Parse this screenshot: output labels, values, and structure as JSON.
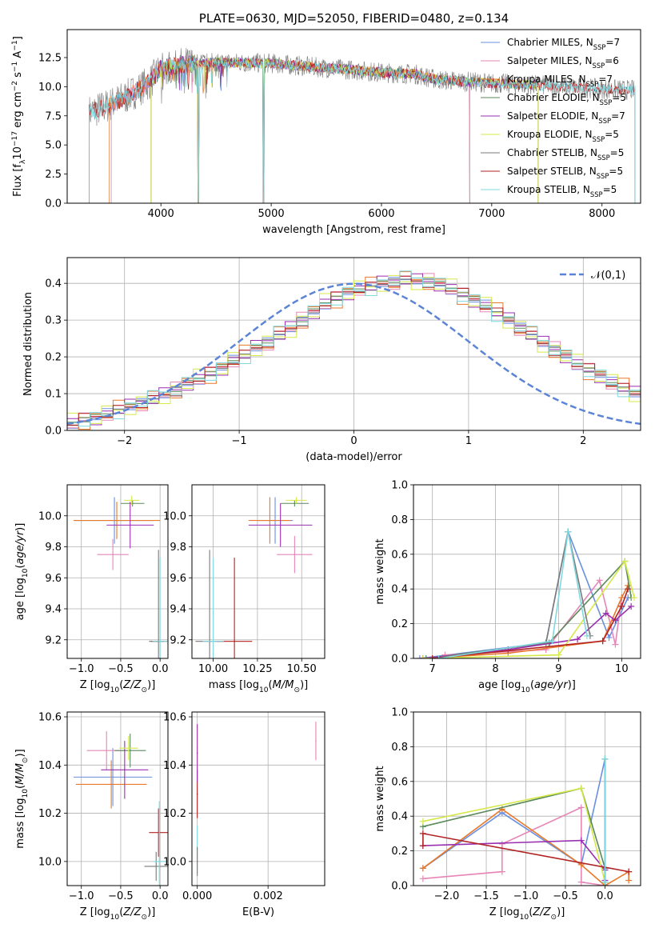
{
  "colors": {
    "chabrier_miles": "#6a8fe0",
    "salpeter_miles": "#e685b6",
    "kroupa_miles": "#e8782a",
    "chabrier_elodie": "#5a8a5a",
    "salpeter_elodie": "#9a2fb0",
    "kroupa_elodie": "#d6e84a",
    "chabrier_stelib": "#7a7a7a",
    "salpeter_stelib": "#b22222",
    "kroupa_stelib": "#7fd8e0",
    "normal_curve": "#5b84d6",
    "grid": "#b0b0b0"
  },
  "chart_data": [
    {
      "id": "spectrum",
      "type": "line",
      "title": "PLATE=0630, MJD=52050, FIBERID=0480, z=0.134",
      "xlabel": "wavelength [Angstrom, rest frame]",
      "ylabel": "Flux [f$_\\lambda$10$^{-17}$ erg cm$^{-2}$ s$^{-1}$ A$^{-1}$]",
      "xlim": [
        3150,
        8350
      ],
      "ylim": [
        0,
        14.9
      ],
      "xticks": [
        "4000",
        "5000",
        "6000",
        "7000",
        "8000"
      ],
      "yticks": [
        "0.0",
        "2.5",
        "5.0",
        "7.5",
        "10.0",
        "12.5"
      ],
      "grid": false,
      "legend_position": "top-right",
      "series": [
        {
          "name": "Chabrier MILES, N$_{SSP}$=7"
        },
        {
          "name": "Salpeter MILES, N$_{SSP}$=6"
        },
        {
          "name": "Kroupa MILES, N$_{SSP}$=7"
        },
        {
          "name": "Chabrier ELODIE, N$_{SSP}$=5"
        },
        {
          "name": "Salpeter ELODIE, N$_{SSP}$=7"
        },
        {
          "name": "Kroupa ELODIE, N$_{SSP}$=5"
        },
        {
          "name": "Chabrier STELIB, N$_{SSP}$=5"
        },
        {
          "name": "Salpeter STELIB, N$_{SSP}$=5"
        },
        {
          "name": "Kroupa STELIB, N$_{SSP}$=5"
        }
      ],
      "continuum": {
        "x": [
          3350,
          3500,
          3700,
          3900,
          4000,
          4200,
          4500,
          5000,
          5500,
          5800,
          6000,
          6300,
          6500,
          7000,
          7500,
          8000,
          8300
        ],
        "y": [
          7.8,
          8.3,
          9.2,
          10.4,
          11.6,
          11.9,
          12.1,
          12.0,
          11.6,
          11.4,
          11.2,
          11.1,
          10.6,
          10.3,
          10.1,
          9.8,
          9.7
        ]
      },
      "model_range_starts": [
        3550,
        3550,
        3530,
        3910,
        3910,
        3910,
        3350,
        3350,
        3350
      ],
      "model_range_ends": [
        6800,
        6800,
        6800,
        7420,
        7420,
        7420,
        8300,
        8300,
        8300
      ],
      "absorption_dips_x": [
        4340,
        4930
      ]
    },
    {
      "id": "residual-histogram",
      "type": "bar",
      "xlabel": "(data-model)/error",
      "ylabel": "Normed distribution",
      "xlim": [
        -2.5,
        2.5
      ],
      "ylim": [
        0,
        0.47
      ],
      "xticks": [
        "−2",
        "−1",
        "0",
        "1",
        "2"
      ],
      "yticks": [
        "0.0",
        "0.1",
        "0.2",
        "0.3",
        "0.4"
      ],
      "grid": true,
      "legend_position": "top-right",
      "legend": "$\\mathcal{N}(0,1)$",
      "bins": {
        "start": -2.5,
        "width": 0.1
      },
      "envelope": [
        0.02,
        0.03,
        0.035,
        0.045,
        0.055,
        0.065,
        0.075,
        0.085,
        0.1,
        0.11,
        0.125,
        0.14,
        0.155,
        0.17,
        0.19,
        0.205,
        0.225,
        0.24,
        0.26,
        0.28,
        0.3,
        0.32,
        0.345,
        0.36,
        0.375,
        0.385,
        0.39,
        0.4,
        0.405,
        0.41,
        0.41,
        0.405,
        0.395,
        0.385,
        0.37,
        0.355,
        0.34,
        0.32,
        0.3,
        0.28,
        0.26,
        0.24,
        0.22,
        0.2,
        0.18,
        0.165,
        0.15,
        0.13,
        0.115,
        0.1,
        0.085
      ],
      "series_offsets": [
        0.008,
        -0.012,
        0.015,
        -0.006,
        0.011,
        -0.015,
        0.004,
        -0.009,
        0.013
      ]
    },
    {
      "id": "age-vs-z",
      "type": "scatter",
      "xlabel": "Z [log$_{10}$($Z/Z_\\odot$)]",
      "ylabel": "age  [log$_{10}$($age/yr$)]",
      "xlim": [
        -1.18,
        0.1
      ],
      "ylim": [
        9.08,
        10.2
      ],
      "xticks": [
        "−1.0",
        "−0.5",
        "0.0"
      ],
      "yticks": [
        "9.2",
        "9.4",
        "9.6",
        "9.8",
        "10.0"
      ],
      "grid": true,
      "points": [
        {
          "series": 0,
          "x": -0.58,
          "y": 9.97,
          "xerr": 0.5,
          "yerr": 0.15
        },
        {
          "series": 1,
          "x": -0.6,
          "y": 9.75,
          "xerr": 0.2,
          "yerr": 0.1
        },
        {
          "series": 2,
          "x": -0.55,
          "y": 9.97,
          "xerr": 0.55,
          "yerr": 0.12
        },
        {
          "series": 3,
          "x": -0.35,
          "y": 10.08,
          "xerr": 0.15,
          "yerr": 0.02
        },
        {
          "series": 4,
          "x": -0.38,
          "y": 9.94,
          "xerr": 0.3,
          "yerr": 0.15
        },
        {
          "series": 5,
          "x": -0.36,
          "y": 10.1,
          "xerr": 0.1,
          "yerr": 0.03
        },
        {
          "series": 6,
          "x": -0.02,
          "y": 9.19,
          "xerr": 0.12,
          "yerr": 0.59
        },
        {
          "series": 7,
          "x": -0.03,
          "y": 9.19,
          "xerr": 0.08,
          "yerr": 0.0
        },
        {
          "series": 8,
          "x": 0.0,
          "y": 9.19,
          "xerr": 0.1,
          "yerr": 0.54
        }
      ]
    },
    {
      "id": "age-vs-mass",
      "type": "scatter",
      "xlabel": "mass [log$_{10}$($M/M_\\odot$)]",
      "ylabel": "",
      "xlim": [
        9.88,
        10.63
      ],
      "ylim": [
        9.08,
        10.2
      ],
      "xticks": [
        "10.00",
        "10.25",
        "10.50"
      ],
      "yticks": [
        "9.2",
        "9.4",
        "9.6",
        "9.8",
        "10.0"
      ],
      "grid": true,
      "points": [
        {
          "series": 0,
          "x": 10.35,
          "y": 9.97,
          "xerr": 0.1,
          "yerr": 0.15
        },
        {
          "series": 1,
          "x": 10.46,
          "y": 9.75,
          "xerr": 0.1,
          "yerr": 0.12
        },
        {
          "series": 2,
          "x": 10.32,
          "y": 9.97,
          "xerr": 0.12,
          "yerr": 0.15
        },
        {
          "series": 3,
          "x": 10.46,
          "y": 10.08,
          "xerr": 0.08,
          "yerr": 0.02
        },
        {
          "series": 4,
          "x": 10.38,
          "y": 9.94,
          "xerr": 0.18,
          "yerr": 0.14
        },
        {
          "series": 5,
          "x": 10.47,
          "y": 10.1,
          "xerr": 0.06,
          "yerr": 0.02
        },
        {
          "series": 6,
          "x": 9.98,
          "y": 9.19,
          "xerr": 0.08,
          "yerr": 0.59
        },
        {
          "series": 7,
          "x": 10.12,
          "y": 9.19,
          "xerr": 0.1,
          "yerr": 0.54
        },
        {
          "series": 8,
          "x": 10.0,
          "y": 9.19,
          "xerr": 0.06,
          "yerr": 0.54
        }
      ]
    },
    {
      "id": "mass-weight-vs-age",
      "type": "line",
      "xlabel": "age  [log$_{10}$($age/yr$)]",
      "ylabel": "mass weight",
      "xlim": [
        6.7,
        10.3
      ],
      "ylim": [
        0,
        1.0
      ],
      "xticks": [
        "7",
        "8",
        "9",
        "10"
      ],
      "yticks": [
        "0.0",
        "0.2",
        "0.4",
        "0.6",
        "0.8",
        "1.0"
      ],
      "grid": true,
      "series": [
        {
          "color_key": "chabrier_miles",
          "x": [
            6.8,
            8.8,
            9.15,
            9.8,
            10.1
          ],
          "y": [
            0.0,
            0.09,
            0.73,
            0.12,
            0.35
          ]
        },
        {
          "color_key": "salpeter_miles",
          "x": [
            7.2,
            8.8,
            9.65,
            9.9,
            10.0
          ],
          "y": [
            0.02,
            0.05,
            0.45,
            0.08,
            0.35
          ]
        },
        {
          "color_key": "kroupa_miles",
          "x": [
            6.85,
            8.2,
            9.7,
            10.0,
            10.1
          ],
          "y": [
            0.0,
            0.03,
            0.1,
            0.35,
            0.42
          ]
        },
        {
          "color_key": "chabrier_elodie",
          "x": [
            6.9,
            8.85,
            10.05,
            10.15
          ],
          "y": [
            0.0,
            0.09,
            0.56,
            0.35
          ]
        },
        {
          "color_key": "salpeter_elodie",
          "x": [
            6.85,
            8.2,
            9.3,
            9.75,
            9.9,
            10.15
          ],
          "y": [
            0.0,
            0.05,
            0.11,
            0.26,
            0.22,
            0.3
          ]
        },
        {
          "color_key": "kroupa_elodie",
          "x": [
            6.85,
            9.0,
            10.05,
            10.2
          ],
          "y": [
            0.0,
            0.02,
            0.56,
            0.35
          ]
        },
        {
          "color_key": "chabrier_stelib",
          "x": [
            7.0,
            8.8,
            9.15,
            9.5
          ],
          "y": [
            0.0,
            0.09,
            0.73,
            0.13
          ]
        },
        {
          "color_key": "salpeter_stelib",
          "x": [
            7.0,
            9.7,
            10.0,
            10.1
          ],
          "y": [
            0.0,
            0.1,
            0.3,
            0.4
          ]
        },
        {
          "color_key": "kroupa_stelib",
          "x": [
            7.1,
            8.9,
            9.15,
            9.45
          ],
          "y": [
            0.0,
            0.1,
            0.73,
            0.13
          ]
        }
      ]
    },
    {
      "id": "mass-vs-z",
      "type": "scatter",
      "xlabel": "Z [log$_{10}$($Z/Z_\\odot$)]",
      "ylabel": "mass [log$_{10}$($M/M_\\odot$)]",
      "xlim": [
        -1.18,
        0.1
      ],
      "ylim": [
        9.9,
        10.62
      ],
      "xticks": [
        "−1.0",
        "−0.5",
        "0.0"
      ],
      "yticks": [
        "10.0",
        "10.2",
        "10.4",
        "10.6"
      ],
      "grid": true,
      "points": [
        {
          "series": 0,
          "x": -0.6,
          "y": 10.35,
          "xerr": 0.5,
          "yerr": 0.12
        },
        {
          "series": 1,
          "x": -0.68,
          "y": 10.46,
          "xerr": 0.25,
          "yerr": 0.08
        },
        {
          "series": 2,
          "x": -0.62,
          "y": 10.32,
          "xerr": 0.45,
          "yerr": 0.1
        },
        {
          "series": 3,
          "x": -0.38,
          "y": 10.46,
          "xerr": 0.2,
          "yerr": 0.07
        },
        {
          "series": 4,
          "x": -0.45,
          "y": 10.38,
          "xerr": 0.3,
          "yerr": 0.12
        },
        {
          "series": 5,
          "x": -0.4,
          "y": 10.47,
          "xerr": 0.12,
          "yerr": 0.05
        },
        {
          "series": 6,
          "x": -0.05,
          "y": 9.98,
          "xerr": 0.15,
          "yerr": 0.06
        },
        {
          "series": 7,
          "x": -0.02,
          "y": 10.12,
          "xerr": 0.12,
          "yerr": 0.1
        },
        {
          "series": 8,
          "x": -0.01,
          "y": 10.0,
          "xerr": 0.08,
          "yerr": 0.25
        }
      ]
    },
    {
      "id": "mass-vs-ebv",
      "type": "scatter",
      "xlabel": "E(B-V)",
      "ylabel": "",
      "xlim": [
        -0.00015,
        0.0036
      ],
      "ylim": [
        9.9,
        10.62
      ],
      "xticks": [
        "0.000",
        "0.002"
      ],
      "yticks": [
        "10.0",
        "10.2",
        "10.4",
        "10.6"
      ],
      "grid": true,
      "points": [
        {
          "series": 1,
          "x": 0.00335,
          "y": 10.5,
          "xerr": 0,
          "yerr": 0.08
        },
        {
          "series": 5,
          "x": 0.0,
          "y": 10.47,
          "xerr": 0,
          "yerr": 0.1
        },
        {
          "series": 7,
          "x": 0.0,
          "y": 10.28,
          "xerr": 0,
          "yerr": 0.1
        },
        {
          "series": 4,
          "x": 0.0,
          "y": 10.45,
          "xerr": 0,
          "yerr": 0.12
        },
        {
          "series": 8,
          "x": 0.0,
          "y": 10.05,
          "xerr": 0,
          "yerr": 0.1
        },
        {
          "series": 6,
          "x": 0.0,
          "y": 10.0,
          "xerr": 0,
          "yerr": 0.06
        }
      ]
    },
    {
      "id": "mass-weight-vs-z",
      "type": "line",
      "xlabel": "Z [log$_{10}$($Z/Z_\\odot$)]",
      "ylabel": "mass weight",
      "xlim": [
        -2.42,
        0.45
      ],
      "ylim": [
        0,
        1.0
      ],
      "xticks": [
        "−2.0",
        "−1.5",
        "−1.0",
        "−0.5",
        "0.0"
      ],
      "yticks": [
        "0.0",
        "0.2",
        "0.4",
        "0.6",
        "0.8",
        "1.0"
      ],
      "grid": true,
      "series": [
        {
          "color_key": "chabrier_miles",
          "x": [
            -2.3,
            -1.3,
            -0.3,
            0.0,
            0.0
          ],
          "y": [
            0.1,
            0.42,
            0.12,
            0.73,
            0.09
          ]
        },
        {
          "color_key": "salpeter_miles",
          "x": [
            -2.3,
            -1.3,
            -1.3,
            -0.3,
            -0.3,
            0.0
          ],
          "y": [
            0.04,
            0.08,
            0.24,
            0.45,
            0.02,
            0.0
          ]
        },
        {
          "color_key": "kroupa_miles",
          "x": [
            -2.3,
            -1.3,
            -0.3,
            0.0,
            0.3,
            0.3
          ],
          "y": [
            0.1,
            0.44,
            0.12,
            0.0,
            0.08,
            0.03
          ]
        },
        {
          "color_key": "chabrier_elodie",
          "x": [
            -2.3,
            -0.3,
            0.0,
            0.0
          ],
          "y": [
            0.34,
            0.56,
            0.1,
            0.02
          ]
        },
        {
          "color_key": "salpeter_elodie",
          "x": [
            -2.3,
            -0.3,
            0.0,
            0.0
          ],
          "y": [
            0.23,
            0.26,
            0.09,
            0.03
          ]
        },
        {
          "color_key": "kroupa_elodie",
          "x": [
            -2.3,
            -0.3,
            0.0
          ],
          "y": [
            0.37,
            0.56,
            0.02
          ]
        },
        {
          "color_key": "chabrier_stelib",
          "x": [
            0.0,
            0.0
          ],
          "y": [
            0.0,
            0.73
          ]
        },
        {
          "color_key": "salpeter_stelib",
          "x": [
            -2.3,
            -2.3,
            0.3
          ],
          "y": [
            0.23,
            0.3,
            0.08
          ]
        },
        {
          "color_key": "kroupa_stelib",
          "x": [
            0.0,
            0.0
          ],
          "y": [
            0.02,
            0.73
          ]
        }
      ]
    }
  ]
}
